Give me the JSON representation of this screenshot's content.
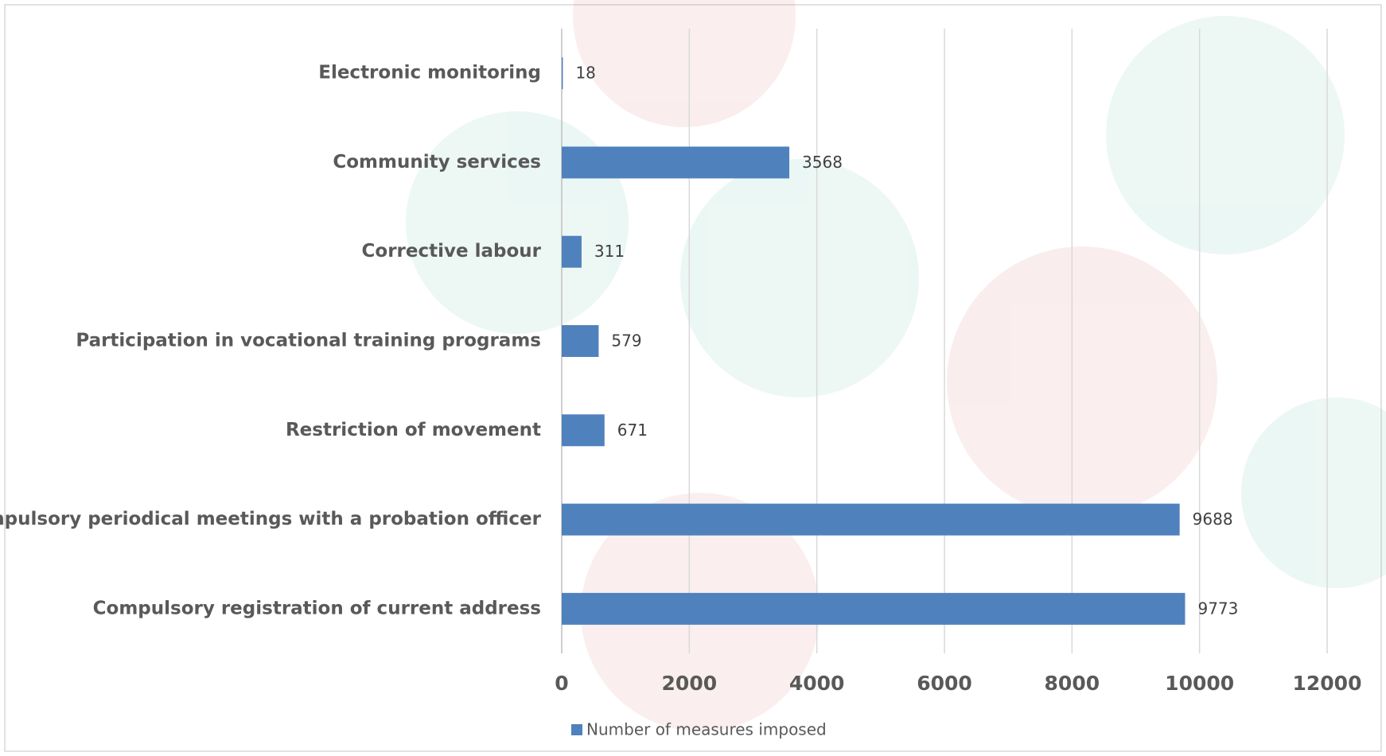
{
  "chart_data": {
    "type": "bar",
    "orientation": "horizontal",
    "categories": [
      "Electronic monitoring",
      "Community services",
      "Corrective labour",
      "Participation in vocational training programs",
      "Restriction of movement",
      "Compulsory periodical meetings with a probation officer",
      "Compulsory registration of current address"
    ],
    "series": [
      {
        "name": "Number of measures imposed",
        "color": "#4f81bd",
        "values": [
          18,
          3568,
          311,
          579,
          671,
          9688,
          9773
        ]
      }
    ],
    "xlim": [
      0,
      12000
    ],
    "xticks": [
      0,
      2000,
      4000,
      6000,
      8000,
      10000,
      12000
    ],
    "grid": true,
    "legend": "bottom"
  }
}
